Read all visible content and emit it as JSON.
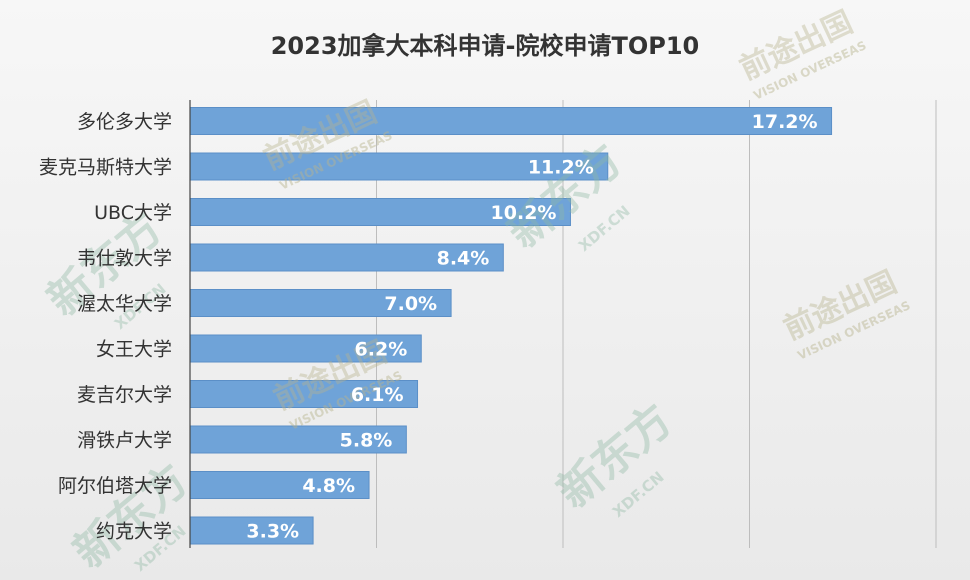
{
  "chart_data": {
    "type": "bar",
    "orientation": "horizontal",
    "title": "2023加拿大本科申请-院校申请TOP10",
    "categories": [
      "多伦多大学",
      "麦克马斯特大学",
      "UBC大学",
      "韦仕敦大学",
      "渥太华大学",
      "女王大学",
      "麦吉尔大学",
      "滑铁卢大学",
      "阿尔伯塔大学",
      "约克大学"
    ],
    "values": [
      17.2,
      11.2,
      10.2,
      8.4,
      7.0,
      6.2,
      6.1,
      5.8,
      4.8,
      3.3
    ],
    "value_labels": [
      "17.2%",
      "11.2%",
      "10.2%",
      "8.4%",
      "7.0%",
      "6.2%",
      "6.1%",
      "5.8%",
      "4.8%",
      "3.3%"
    ],
    "xlim": [
      0,
      20
    ],
    "grid": true,
    "legend": "none",
    "colors": {
      "bar": "#6fa3d8",
      "bar_edge": "#5b8fc7",
      "background": "#eeeeee"
    }
  },
  "watermarks": {
    "brand_cn": "新东方",
    "brand_url": "XDF.CN",
    "logo_cn": "前途出国",
    "logo_en": "VISION OVERSEAS"
  }
}
